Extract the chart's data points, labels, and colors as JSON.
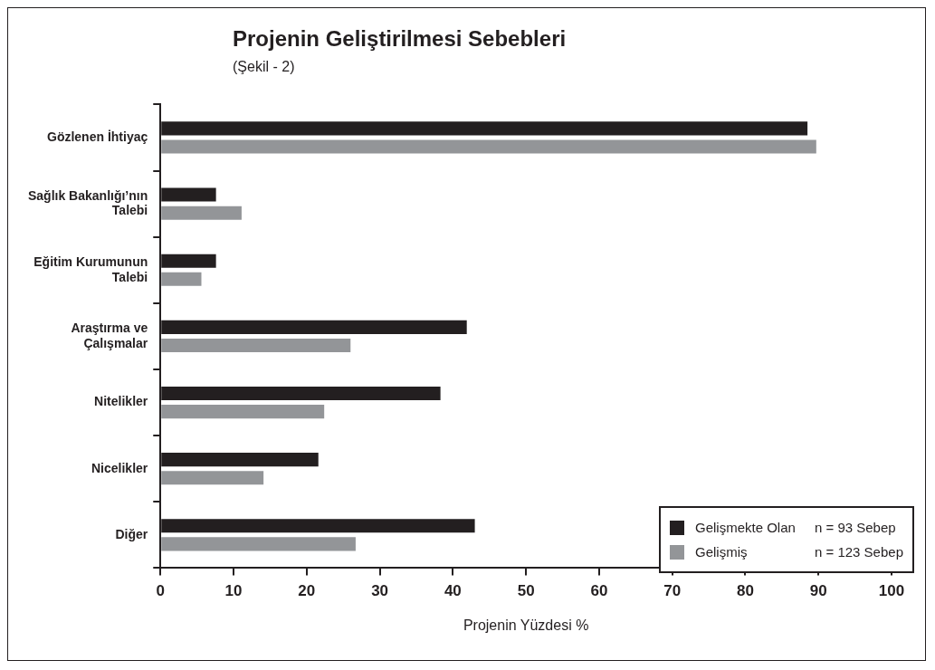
{
  "chart_data": {
    "type": "bar",
    "orientation": "horizontal",
    "title": "Projenin Geliştirilmesi Sebebleri",
    "subtitle": "(Şekil - 2)",
    "xlabel": "Projenin Yüzdesi %",
    "categories": [
      "Gözlenen İhtiyaç",
      "Sağlık Bakanlığı’nın Talebi",
      "Eğitim Kurumunun Talebi",
      "Araştırma ve Çalışmalar",
      "Nitelikler",
      "Nicelikler",
      "Diğer"
    ],
    "series": [
      {
        "name": "Gelişmekte Olan",
        "color": "#231f20",
        "values": [
          88.5,
          7.6,
          7.6,
          41.9,
          38.3,
          21.6,
          43.0
        ]
      },
      {
        "name": "Gelişmiş",
        "color": "#939598",
        "values": [
          89.7,
          11.1,
          5.6,
          26.0,
          22.4,
          14.1,
          26.7
        ]
      }
    ],
    "annotations": [
      "n = 93 Sebep",
      "n = 123 Sebep"
    ],
    "xlim": [
      0,
      100
    ],
    "xticks": [
      0,
      10,
      20,
      30,
      40,
      50,
      60,
      70,
      80,
      90,
      100
    ],
    "grid": false,
    "legend": "bottom right"
  }
}
